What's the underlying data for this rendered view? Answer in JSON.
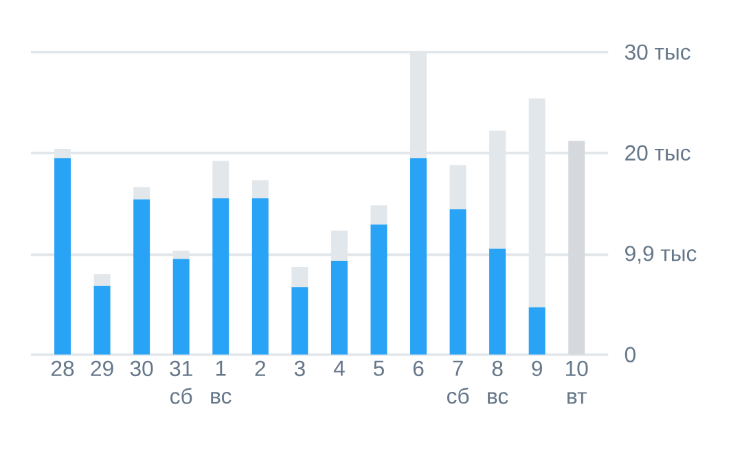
{
  "chart_data": {
    "type": "bar",
    "stacked": true,
    "categories": [
      "28",
      "29",
      "30",
      "31\nсб",
      "1\nвс",
      "2",
      "3",
      "4",
      "5",
      "6",
      "7\nсб",
      "8\nвс",
      "9",
      "10\nвт"
    ],
    "series": [
      {
        "color": "#29a3f5",
        "values": [
          19.5,
          6.8,
          15.4,
          9.5,
          15.5,
          15.5,
          6.7,
          9.3,
          12.9,
          19.5,
          14.4,
          10.5,
          4.7,
          null
        ]
      },
      {
        "colors": [
          "#e2e7eb",
          "#e2e7eb",
          "#e2e7eb",
          "#e2e7eb",
          "#e2e7eb",
          "#e2e7eb",
          "#e2e7eb",
          "#e2e7eb",
          "#e2e7eb",
          "#e2e7eb",
          "#e2e7eb",
          "#e2e7eb",
          "#e2e7eb",
          "#d5d9dd"
        ],
        "values": [
          0.9,
          1.2,
          1.2,
          0.8,
          3.7,
          1.8,
          2.0,
          3.0,
          1.9,
          10.5,
          4.4,
          11.7,
          20.7,
          21.2
        ]
      }
    ],
    "ylim": [
      0,
      30
    ],
    "yticks": [
      0,
      {
        "value": 9.9,
        "label": "9,9 тыс"
      },
      {
        "value": 20,
        "label": "20 тыс"
      },
      {
        "value": 30,
        "label": "30 тыс"
      }
    ],
    "grid": "y"
  }
}
